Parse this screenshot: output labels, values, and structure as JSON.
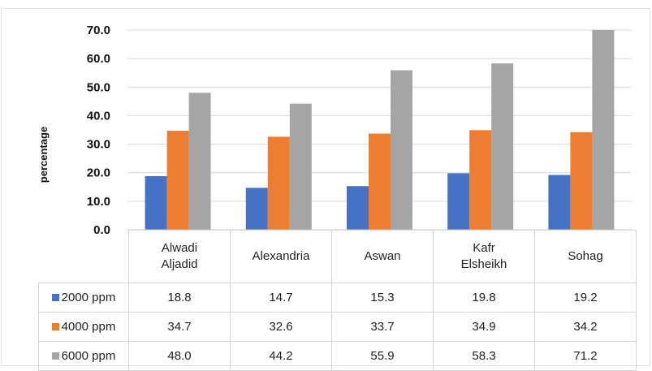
{
  "chart_data": {
    "type": "bar",
    "ylabel": "percentage",
    "ylim": [
      0,
      70
    ],
    "yticks": [
      "0.0",
      "10.0",
      "20.0",
      "30.0",
      "40.0",
      "50.0",
      "60.0",
      "70.0"
    ],
    "grid": true,
    "categories": [
      [
        "Alwadi",
        "Aljadid"
      ],
      [
        "Alexandria"
      ],
      [
        "Aswan"
      ],
      [
        "Kafr",
        "Elsheikh"
      ],
      [
        "Sohag"
      ]
    ],
    "series": [
      {
        "name": "2000 ppm",
        "color": "#4472C4",
        "values": [
          18.8,
          14.7,
          15.3,
          19.8,
          19.2
        ],
        "labels": [
          "18.8",
          "14.7",
          "15.3",
          "19.8",
          "19.2"
        ]
      },
      {
        "name": "4000 ppm",
        "color": "#ED7D31",
        "values": [
          34.7,
          32.6,
          33.7,
          34.9,
          34.2
        ],
        "labels": [
          "34.7",
          "32.6",
          "33.7",
          "34.9",
          "34.2"
        ]
      },
      {
        "name": "6000 ppm",
        "color": "#A5A5A5",
        "values": [
          48.0,
          44.2,
          55.9,
          58.3,
          71.2
        ],
        "labels": [
          "48.0",
          "44.2",
          "55.9",
          "58.3",
          "71.2"
        ]
      }
    ],
    "legend": "data-table"
  }
}
